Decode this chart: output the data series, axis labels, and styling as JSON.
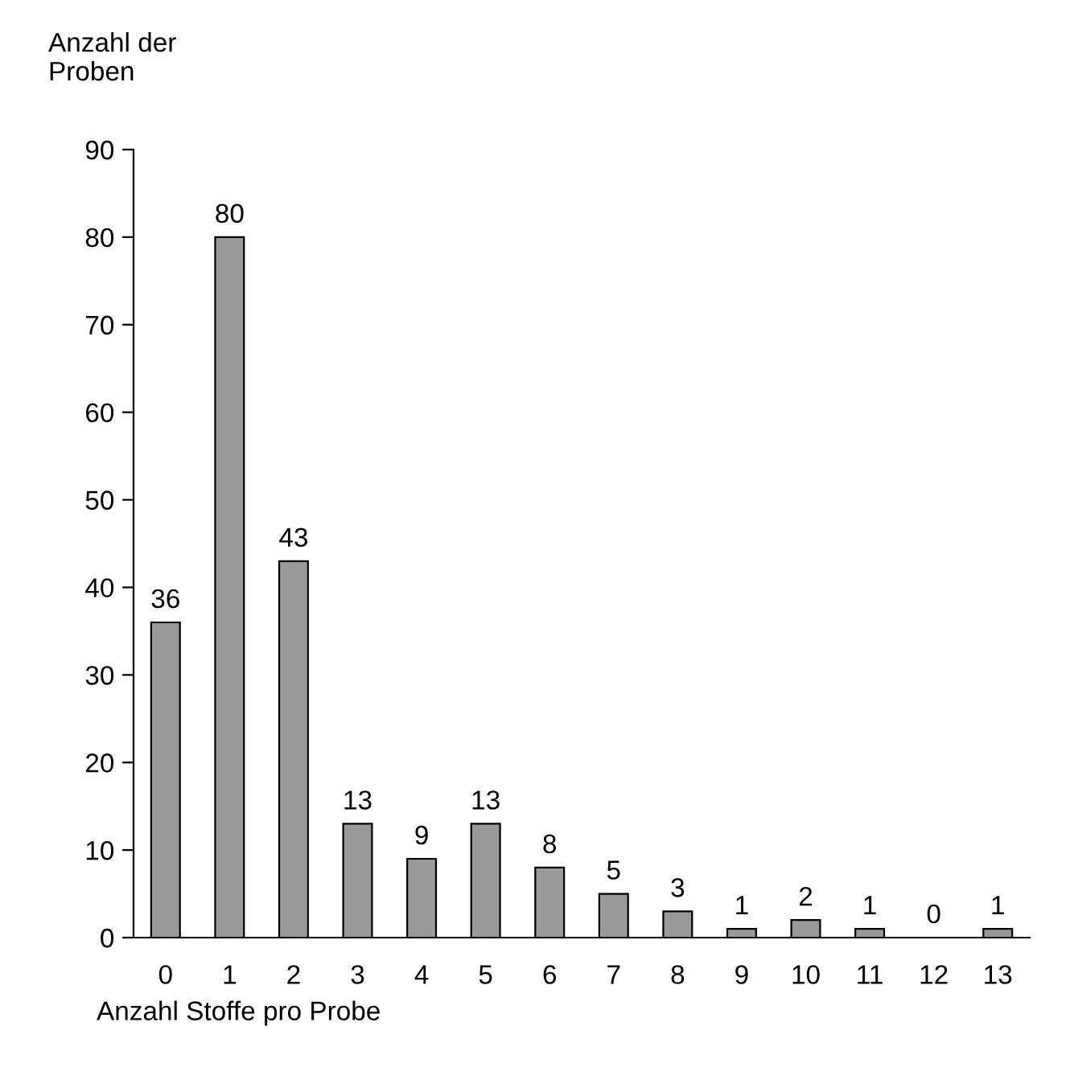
{
  "chart_data": {
    "type": "bar",
    "xlabel": "Anzahl Stoffe pro Probe",
    "ylabel": "Anzahl der\nProben",
    "categories": [
      "0",
      "1",
      "2",
      "3",
      "4",
      "5",
      "6",
      "7",
      "8",
      "9",
      "10",
      "11",
      "12",
      "13"
    ],
    "values": [
      36,
      80,
      43,
      13,
      9,
      13,
      8,
      5,
      3,
      1,
      2,
      1,
      0,
      1
    ],
    "color": "#999999",
    "ylim": [
      0,
      90
    ],
    "yticks": [
      0,
      10,
      20,
      30,
      40,
      50,
      60,
      70,
      80,
      90
    ],
    "data_labels": true,
    "grid": false,
    "legend": false
  }
}
